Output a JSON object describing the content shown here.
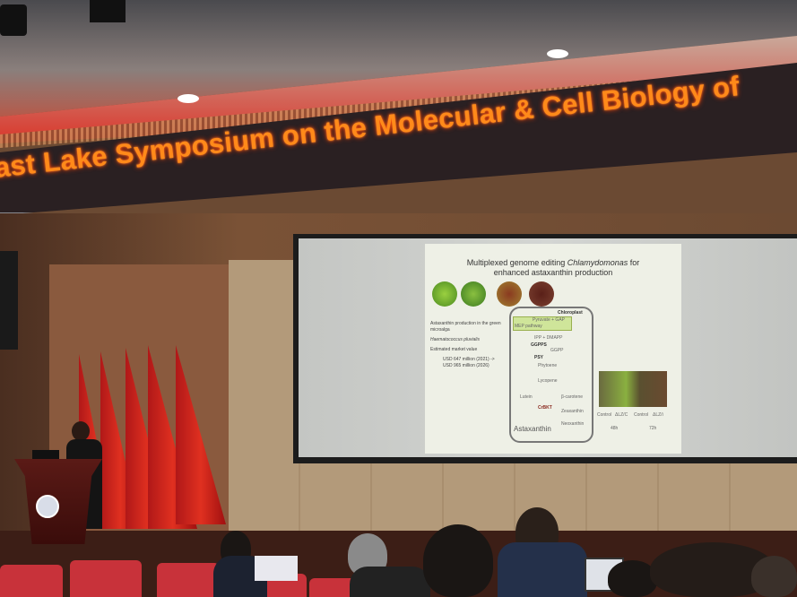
{
  "banner": {
    "text": "ast Lake Symposium on the Molecular & Cell Biology of",
    "color": "#ff8a1a"
  },
  "slide": {
    "title_line1_prefix": "Multiplexed genome editing ",
    "title_line1_italic": "Chlamydomonas",
    "title_line1_suffix": " for",
    "title_line2": "enhanced astaxanthin production",
    "left_text": {
      "line1": "Astaxanthin production in the green microalga",
      "species": "Haematococcus pluvialis",
      "market_label": "Estimated market value",
      "value_2021": "USD 647 million (2021) ->",
      "value_2026": "USD 965 million (2026)"
    },
    "pathway": {
      "compartment": "Chloroplast",
      "steps": [
        "Pyruvate + GAP",
        "MEP pathway",
        "IPP + DMAPP",
        "GGPPS",
        "GGPP",
        "PSY",
        "Phytoene",
        "Lycopene",
        "Lutein",
        "β-carotene",
        "CrBKT",
        "Zeaxanthin",
        "Neoxanthin",
        "Astaxanthin"
      ]
    },
    "flask_labels": [
      "Control",
      "ΔLZ/C",
      "Control",
      "ΔLZ/i"
    ],
    "time_labels": [
      "48h",
      "72h"
    ]
  }
}
